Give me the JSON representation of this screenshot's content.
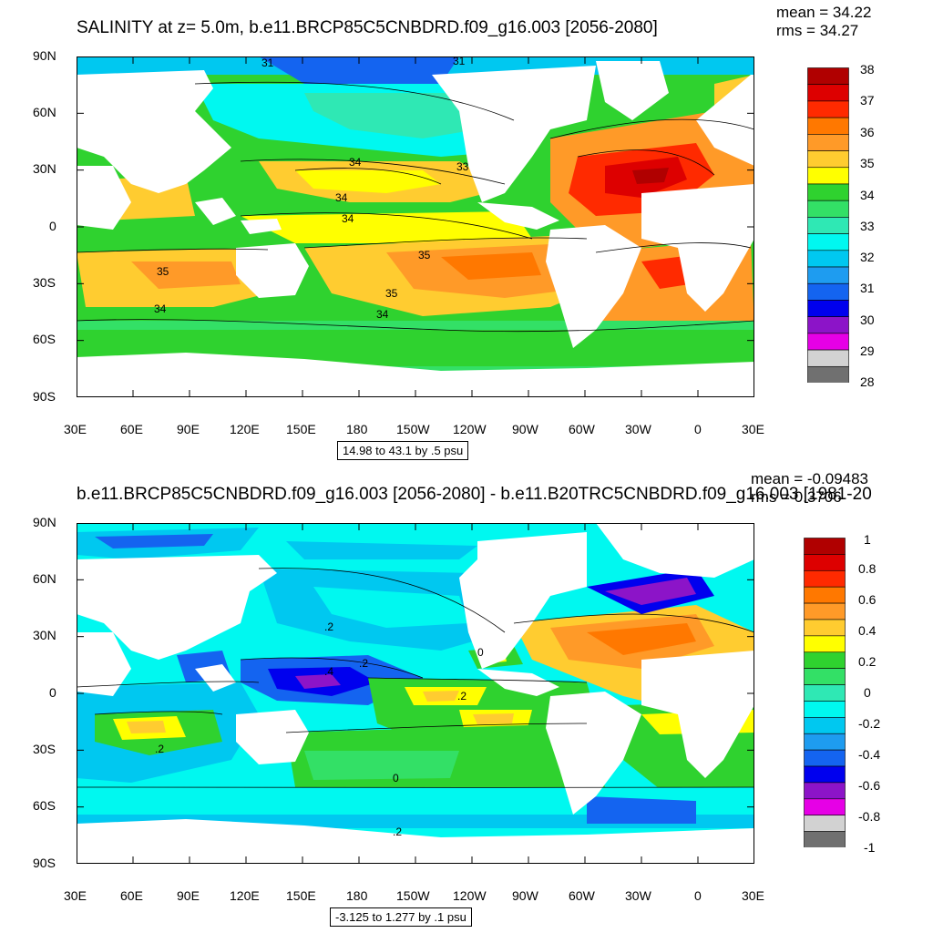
{
  "panels": [
    {
      "title": "SALINITY at z=   5.0m, b.e11.BRCP85C5CNBDRD.f09_g16.003 [2056-2080]",
      "mean_text": "mean = 34.22",
      "rms_text": "rms = 34.27",
      "range_text": "14.98 to 43.1 by .5 psu",
      "lat_labels": [
        "90N",
        "60N",
        "30N",
        "0",
        "30S",
        "60S",
        "90S"
      ],
      "lon_labels": [
        "30E",
        "60E",
        "90E",
        "120E",
        "150E",
        "180",
        "150W",
        "120W",
        "90W",
        "60W",
        "30W",
        "0",
        "30E"
      ],
      "colorbar_labels": [
        "38",
        "37",
        "36",
        "35",
        "34",
        "33",
        "32",
        "31",
        "30",
        "29",
        "28"
      ],
      "colorbar_colors": [
        "#b00000",
        "#dd0000",
        "#ff2a00",
        "#ff7800",
        "#ff9a28",
        "#ffcc30",
        "#ffff00",
        "#2fd22f",
        "#33e066",
        "#2fe8b4",
        "#00f8f0",
        "#00c8f0",
        "#1e9cf0",
        "#1464f0",
        "#0000ee",
        "#8c14c8",
        "#e600e6",
        "#d2d2d2",
        "#707070"
      ],
      "contour_labels": [
        "31",
        "31",
        "34",
        "33",
        "34",
        "34",
        "35",
        "35",
        "35",
        "34",
        "34"
      ]
    },
    {
      "title": "b.e11.BRCP85C5CNBDRD.f09_g16.003 [2056-2080] - b.e11.B20TRC5CNBDRD.f09_g16.003 [1981-20",
      "mean_text": "mean = -0.09483",
      "rms_text": "rms = 0.3706",
      "range_text": "-3.125 to 1.277 by .1 psu",
      "lat_labels": [
        "90N",
        "60N",
        "30N",
        "0",
        "30S",
        "60S",
        "90S"
      ],
      "lon_labels": [
        "30E",
        "60E",
        "90E",
        "120E",
        "150E",
        "180",
        "150W",
        "120W",
        "90W",
        "60W",
        "30W",
        "0",
        "30E"
      ],
      "colorbar_labels": [
        "1",
        "0.8",
        "0.6",
        "0.4",
        "0.2",
        "0",
        "-0.2",
        "-0.4",
        "-0.6",
        "-0.8",
        "-1"
      ],
      "colorbar_colors": [
        "#b00000",
        "#dd0000",
        "#ff2a00",
        "#ff7800",
        "#ff9a28",
        "#ffcc30",
        "#ffff00",
        "#2fd22f",
        "#33e066",
        "#2fe8b4",
        "#00f8f0",
        "#00c8f0",
        "#1e9cf0",
        "#1464f0",
        "#0000ee",
        "#8c14c8",
        "#e600e6",
        "#d2d2d2",
        "#707070"
      ],
      "contour_labels": [
        ".2",
        ".2",
        ".4",
        ".2",
        "0",
        "0",
        ".2",
        ".2"
      ]
    }
  ]
}
